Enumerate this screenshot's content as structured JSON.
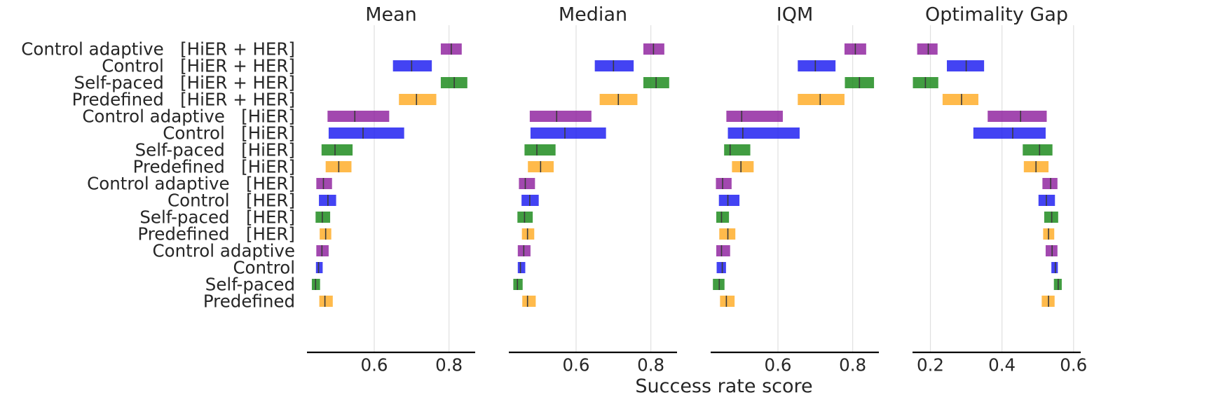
{
  "figure": {
    "xlabel": "Success rate score"
  },
  "colors": {
    "Control adaptive": "#8B1A9B",
    "Control": "#1414F0",
    "Self-paced": "#128512",
    "Predefined": "#FFA91E",
    "median_tick": "#3a3a3a",
    "grid": "#e0e0e0",
    "axis": "#000000"
  },
  "chart_data": {
    "type": "interval",
    "categories": [
      "Control adaptive   [HiER + HER]",
      "Control   [HiER + HER]",
      "Self-paced   [HiER + HER]",
      "Predefined   [HiER + HER]",
      "Control adaptive   [HiER]",
      "Control   [HiER]",
      "Self-paced   [HiER]",
      "Predefined   [HiER]",
      "Control adaptive   [HER]",
      "Control   [HER]",
      "Self-paced   [HER]",
      "Predefined   [HER]",
      "Control adaptive",
      "Control",
      "Self-paced",
      "Predefined"
    ],
    "category_groups": [
      "Control adaptive",
      "Control",
      "Self-paced",
      "Predefined",
      "Control adaptive",
      "Control",
      "Self-paced",
      "Predefined",
      "Control adaptive",
      "Control",
      "Self-paced",
      "Predefined",
      "Control adaptive",
      "Control",
      "Self-paced",
      "Predefined"
    ],
    "panels": [
      {
        "title": "Mean",
        "xlim": [
          0.42,
          0.87
        ],
        "ticks": [
          0.6,
          0.8
        ],
        "tick_labels": [
          "0.6",
          "0.8"
        ],
        "intervals": [
          [
            0.778,
            0.834,
            0.806
          ],
          [
            0.65,
            0.754,
            0.7
          ],
          [
            0.778,
            0.849,
            0.814
          ],
          [
            0.666,
            0.766,
            0.713
          ],
          [
            0.475,
            0.64,
            0.548
          ],
          [
            0.478,
            0.68,
            0.57
          ],
          [
            0.459,
            0.542,
            0.495
          ],
          [
            0.47,
            0.539,
            0.505
          ],
          [
            0.445,
            0.487,
            0.464
          ],
          [
            0.452,
            0.498,
            0.476
          ],
          [
            0.443,
            0.482,
            0.461
          ],
          [
            0.454,
            0.485,
            0.47
          ],
          [
            0.445,
            0.478,
            0.46
          ],
          [
            0.444,
            0.462,
            0.451
          ],
          [
            0.433,
            0.455,
            0.443
          ],
          [
            0.453,
            0.489,
            0.468
          ]
        ]
      },
      {
        "title": "Median",
        "xlim": [
          0.42,
          0.87
        ],
        "ticks": [
          0.6,
          0.8
        ],
        "tick_labels": [
          "0.6",
          "0.8"
        ],
        "intervals": [
          [
            0.78,
            0.836,
            0.807
          ],
          [
            0.65,
            0.754,
            0.7
          ],
          [
            0.78,
            0.849,
            0.814
          ],
          [
            0.663,
            0.764,
            0.713
          ],
          [
            0.476,
            0.641,
            0.548
          ],
          [
            0.478,
            0.68,
            0.57
          ],
          [
            0.462,
            0.545,
            0.495
          ],
          [
            0.471,
            0.54,
            0.505
          ],
          [
            0.447,
            0.49,
            0.464
          ],
          [
            0.454,
            0.5,
            0.476
          ],
          [
            0.443,
            0.484,
            0.462
          ],
          [
            0.455,
            0.488,
            0.47
          ],
          [
            0.444,
            0.478,
            0.46
          ],
          [
            0.444,
            0.464,
            0.451
          ],
          [
            0.432,
            0.457,
            0.443
          ],
          [
            0.456,
            0.492,
            0.47
          ]
        ]
      },
      {
        "title": "IQM",
        "xlim": [
          0.42,
          0.87
        ],
        "ticks": [
          0.6,
          0.8
        ],
        "tick_labels": [
          "0.6",
          "0.8"
        ],
        "intervals": [
          [
            0.778,
            0.836,
            0.807
          ],
          [
            0.653,
            0.754,
            0.7
          ],
          [
            0.779,
            0.857,
            0.818
          ],
          [
            0.653,
            0.778,
            0.713
          ],
          [
            0.462,
            0.613,
            0.503
          ],
          [
            0.466,
            0.658,
            0.506
          ],
          [
            0.456,
            0.526,
            0.472
          ],
          [
            0.477,
            0.535,
            0.501
          ],
          [
            0.434,
            0.476,
            0.452
          ],
          [
            0.442,
            0.497,
            0.466
          ],
          [
            0.435,
            0.469,
            0.449
          ],
          [
            0.443,
            0.486,
            0.466
          ],
          [
            0.435,
            0.472,
            0.449
          ],
          [
            0.436,
            0.461,
            0.451
          ],
          [
            0.426,
            0.457,
            0.443
          ],
          [
            0.445,
            0.484,
            0.462
          ]
        ]
      },
      {
        "title": "Optimality Gap",
        "xlim": [
          0.15,
          0.62
        ],
        "ticks": [
          0.2,
          0.4,
          0.6
        ],
        "tick_labels": [
          "0.2",
          "0.4",
          "0.6"
        ],
        "intervals": [
          [
            0.163,
            0.22,
            0.194
          ],
          [
            0.246,
            0.35,
            0.3
          ],
          [
            0.151,
            0.222,
            0.186
          ],
          [
            0.234,
            0.334,
            0.287
          ],
          [
            0.36,
            0.525,
            0.452
          ],
          [
            0.32,
            0.522,
            0.43
          ],
          [
            0.458,
            0.541,
            0.505
          ],
          [
            0.461,
            0.53,
            0.495
          ],
          [
            0.513,
            0.555,
            0.536
          ],
          [
            0.502,
            0.548,
            0.524
          ],
          [
            0.518,
            0.557,
            0.539
          ],
          [
            0.515,
            0.546,
            0.53
          ],
          [
            0.522,
            0.555,
            0.54
          ],
          [
            0.538,
            0.556,
            0.549
          ],
          [
            0.545,
            0.567,
            0.557
          ],
          [
            0.511,
            0.547,
            0.53
          ]
        ]
      }
    ]
  }
}
